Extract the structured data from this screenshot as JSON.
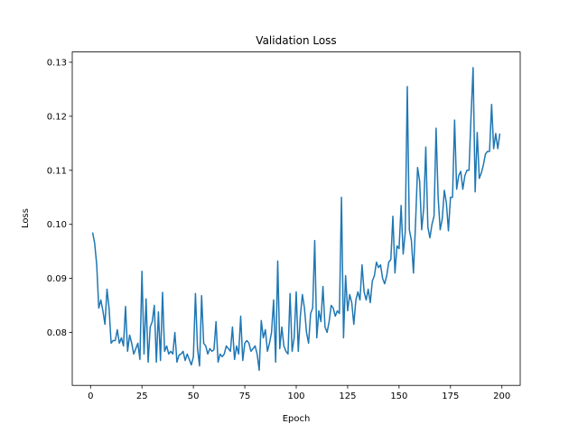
{
  "chart_data": {
    "type": "line",
    "title": "Validation Loss",
    "xlabel": "Epoch",
    "ylabel": "Loss",
    "x": [
      1,
      2,
      3,
      4,
      5,
      6,
      7,
      8,
      9,
      10,
      11,
      12,
      13,
      14,
      15,
      16,
      17,
      18,
      19,
      20,
      21,
      22,
      23,
      24,
      25,
      26,
      27,
      28,
      29,
      30,
      31,
      32,
      33,
      34,
      35,
      36,
      37,
      38,
      39,
      40,
      41,
      42,
      43,
      44,
      45,
      46,
      47,
      48,
      49,
      50,
      51,
      52,
      53,
      54,
      55,
      56,
      57,
      58,
      59,
      60,
      61,
      62,
      63,
      64,
      65,
      66,
      67,
      68,
      69,
      70,
      71,
      72,
      73,
      74,
      75,
      76,
      77,
      78,
      79,
      80,
      81,
      82,
      83,
      84,
      85,
      86,
      87,
      88,
      89,
      90,
      91,
      92,
      93,
      94,
      95,
      96,
      97,
      98,
      99,
      100,
      101,
      102,
      103,
      104,
      105,
      106,
      107,
      108,
      109,
      110,
      111,
      112,
      113,
      114,
      115,
      116,
      117,
      118,
      119,
      120,
      121,
      122,
      123,
      124,
      125,
      126,
      127,
      128,
      129,
      130,
      131,
      132,
      133,
      134,
      135,
      136,
      137,
      138,
      139,
      140,
      141,
      142,
      143,
      144,
      145,
      146,
      147,
      148,
      149,
      150,
      151,
      152,
      153,
      154,
      155,
      156,
      157,
      158,
      159,
      160,
      161,
      162,
      163,
      164,
      165,
      166,
      167,
      168,
      169,
      170,
      171,
      172,
      173,
      174,
      175,
      176,
      177,
      178,
      179,
      180,
      181,
      182,
      183,
      184,
      185,
      186,
      187,
      188,
      189,
      190,
      191,
      192,
      193,
      194,
      195,
      196,
      197,
      198,
      199
    ],
    "series": [
      {
        "name": "Validation Loss",
        "color": "#1f77b4",
        "values": [
          0.0985,
          0.0965,
          0.0925,
          0.0845,
          0.086,
          0.084,
          0.0815,
          0.088,
          0.0845,
          0.078,
          0.0785,
          0.0785,
          0.0805,
          0.078,
          0.079,
          0.0775,
          0.0848,
          0.0765,
          0.0795,
          0.078,
          0.076,
          0.077,
          0.078,
          0.075,
          0.0913,
          0.076,
          0.0862,
          0.0745,
          0.081,
          0.082,
          0.085,
          0.0745,
          0.0838,
          0.0748,
          0.0874,
          0.0765,
          0.0775,
          0.076,
          0.0765,
          0.076,
          0.08,
          0.0745,
          0.0758,
          0.076,
          0.0765,
          0.0748,
          0.076,
          0.075,
          0.074,
          0.0755,
          0.0872,
          0.077,
          0.0738,
          0.0868,
          0.078,
          0.0775,
          0.076,
          0.077,
          0.0765,
          0.0768,
          0.082,
          0.0745,
          0.076,
          0.0755,
          0.076,
          0.0775,
          0.077,
          0.0765,
          0.081,
          0.075,
          0.0775,
          0.076,
          0.083,
          0.0748,
          0.078,
          0.0785,
          0.078,
          0.0765,
          0.077,
          0.0775,
          0.076,
          0.073,
          0.0822,
          0.079,
          0.0805,
          0.0765,
          0.078,
          0.08,
          0.086,
          0.0745,
          0.0932,
          0.077,
          0.081,
          0.0775,
          0.0765,
          0.076,
          0.0872,
          0.0765,
          0.079,
          0.0875,
          0.0765,
          0.083,
          0.087,
          0.0845,
          0.08,
          0.078,
          0.0835,
          0.0845,
          0.097,
          0.079,
          0.084,
          0.082,
          0.0885,
          0.081,
          0.08,
          0.082,
          0.085,
          0.0845,
          0.083,
          0.084,
          0.0835,
          0.105,
          0.079,
          0.0905,
          0.084,
          0.087,
          0.0855,
          0.0815,
          0.086,
          0.0875,
          0.086,
          0.0925,
          0.0875,
          0.086,
          0.088,
          0.0855,
          0.0895,
          0.0905,
          0.093,
          0.092,
          0.0925,
          0.09,
          0.089,
          0.0905,
          0.093,
          0.0935,
          0.1015,
          0.091,
          0.096,
          0.0955,
          0.1035,
          0.0945,
          0.0985,
          0.1255,
          0.099,
          0.097,
          0.091,
          0.1,
          0.1105,
          0.108,
          0.099,
          0.103,
          0.1143,
          0.0995,
          0.0975,
          0.1,
          0.1015,
          0.1178,
          0.105,
          0.099,
          0.101,
          0.1063,
          0.104,
          0.0988,
          0.105,
          0.105,
          0.1193,
          0.1065,
          0.109,
          0.1098,
          0.1065,
          0.109,
          0.11,
          0.11,
          0.12,
          0.129,
          0.106,
          0.117,
          0.1085,
          0.1095,
          0.111,
          0.113,
          0.1135,
          0.1135,
          0.1222,
          0.114,
          0.1168,
          0.114,
          0.1168
        ]
      }
    ],
    "xlim": [
      -8.9,
      208.9
    ],
    "xticks": [
      0,
      25,
      50,
      75,
      100,
      125,
      150,
      175,
      200
    ],
    "ylim": [
      0.0702,
      0.1319
    ],
    "yticks": [
      0.08,
      0.09,
      {
        "value": 0.1,
        "label": "0.10"
      },
      0.11,
      0.12,
      0.13
    ]
  }
}
